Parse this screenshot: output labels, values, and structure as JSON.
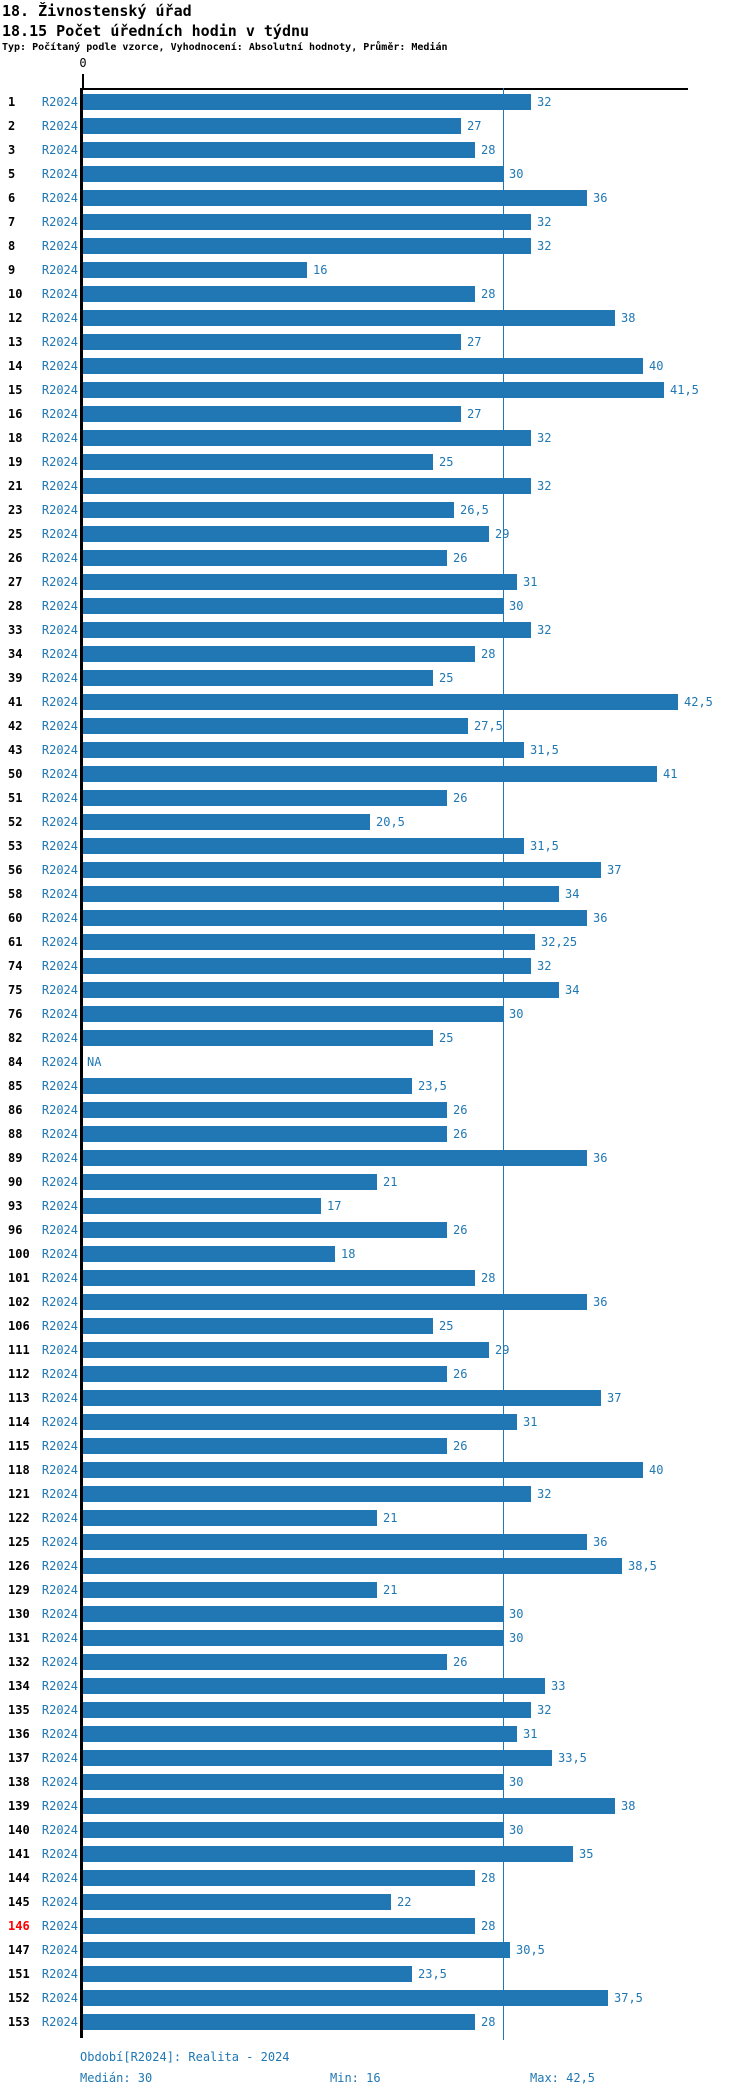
{
  "header": {
    "title": "18. Živnostenský úřad",
    "subtitle": "18.15 Počet úředních hodin v týdnu",
    "meta": "Typ: Počítaný podle vzorce, Vyhodnocení: Absolutní hodnoty, Průměr: Medián"
  },
  "axis": {
    "zero_label": "0"
  },
  "footer": {
    "period": "Období[R2024]: Realita - 2024",
    "median": "Medián: 30",
    "min": "Min: 16",
    "max": "Max: 42,5"
  },
  "colors": {
    "bar": "#2077b4",
    "accent_text": "#1f77b4",
    "median_line": "#1f77b4",
    "axis": "#000000",
    "highlight_row": "#ff0000"
  },
  "chart_data": {
    "type": "bar",
    "orientation": "horizontal",
    "title": "18.15 Počet úředních hodin v týdnu",
    "series_label": "R2024",
    "xlabel": "",
    "ylabel": "",
    "xlim": [
      0,
      43.2
    ],
    "grid": false,
    "median_line_value": 30,
    "stats": {
      "median": 30,
      "min": 16,
      "max": 42.5
    },
    "highlighted_category": "146",
    "rows": [
      {
        "category": "1",
        "value": 32,
        "label": "32"
      },
      {
        "category": "2",
        "value": 27,
        "label": "27"
      },
      {
        "category": "3",
        "value": 28,
        "label": "28"
      },
      {
        "category": "5",
        "value": 30,
        "label": "30"
      },
      {
        "category": "6",
        "value": 36,
        "label": "36"
      },
      {
        "category": "7",
        "value": 32,
        "label": "32"
      },
      {
        "category": "8",
        "value": 32,
        "label": "32"
      },
      {
        "category": "9",
        "value": 16,
        "label": "16"
      },
      {
        "category": "10",
        "value": 28,
        "label": "28"
      },
      {
        "category": "12",
        "value": 38,
        "label": "38"
      },
      {
        "category": "13",
        "value": 27,
        "label": "27"
      },
      {
        "category": "14",
        "value": 40,
        "label": "40"
      },
      {
        "category": "15",
        "value": 41.5,
        "label": "41,5"
      },
      {
        "category": "16",
        "value": 27,
        "label": "27"
      },
      {
        "category": "18",
        "value": 32,
        "label": "32"
      },
      {
        "category": "19",
        "value": 25,
        "label": "25"
      },
      {
        "category": "21",
        "value": 32,
        "label": "32"
      },
      {
        "category": "23",
        "value": 26.5,
        "label": "26,5"
      },
      {
        "category": "25",
        "value": 29,
        "label": "29"
      },
      {
        "category": "26",
        "value": 26,
        "label": "26"
      },
      {
        "category": "27",
        "value": 31,
        "label": "31"
      },
      {
        "category": "28",
        "value": 30,
        "label": "30"
      },
      {
        "category": "33",
        "value": 32,
        "label": "32"
      },
      {
        "category": "34",
        "value": 28,
        "label": "28"
      },
      {
        "category": "39",
        "value": 25,
        "label": "25"
      },
      {
        "category": "41",
        "value": 42.5,
        "label": "42,5"
      },
      {
        "category": "42",
        "value": 27.5,
        "label": "27,5"
      },
      {
        "category": "43",
        "value": 31.5,
        "label": "31,5"
      },
      {
        "category": "50",
        "value": 41,
        "label": "41"
      },
      {
        "category": "51",
        "value": 26,
        "label": "26"
      },
      {
        "category": "52",
        "value": 20.5,
        "label": "20,5"
      },
      {
        "category": "53",
        "value": 31.5,
        "label": "31,5"
      },
      {
        "category": "56",
        "value": 37,
        "label": "37"
      },
      {
        "category": "58",
        "value": 34,
        "label": "34"
      },
      {
        "category": "60",
        "value": 36,
        "label": "36"
      },
      {
        "category": "61",
        "value": 32.25,
        "label": "32,25"
      },
      {
        "category": "74",
        "value": 32,
        "label": "32"
      },
      {
        "category": "75",
        "value": 34,
        "label": "34"
      },
      {
        "category": "76",
        "value": 30,
        "label": "30"
      },
      {
        "category": "82",
        "value": 25,
        "label": "25"
      },
      {
        "category": "84",
        "value": null,
        "label": "NA"
      },
      {
        "category": "85",
        "value": 23.5,
        "label": "23,5"
      },
      {
        "category": "86",
        "value": 26,
        "label": "26"
      },
      {
        "category": "88",
        "value": 26,
        "label": "26"
      },
      {
        "category": "89",
        "value": 36,
        "label": "36"
      },
      {
        "category": "90",
        "value": 21,
        "label": "21"
      },
      {
        "category": "93",
        "value": 17,
        "label": "17"
      },
      {
        "category": "96",
        "value": 26,
        "label": "26"
      },
      {
        "category": "100",
        "value": 18,
        "label": "18"
      },
      {
        "category": "101",
        "value": 28,
        "label": "28"
      },
      {
        "category": "102",
        "value": 36,
        "label": "36"
      },
      {
        "category": "106",
        "value": 25,
        "label": "25"
      },
      {
        "category": "111",
        "value": 29,
        "label": "29"
      },
      {
        "category": "112",
        "value": 26,
        "label": "26"
      },
      {
        "category": "113",
        "value": 37,
        "label": "37"
      },
      {
        "category": "114",
        "value": 31,
        "label": "31"
      },
      {
        "category": "115",
        "value": 26,
        "label": "26"
      },
      {
        "category": "118",
        "value": 40,
        "label": "40"
      },
      {
        "category": "121",
        "value": 32,
        "label": "32"
      },
      {
        "category": "122",
        "value": 21,
        "label": "21"
      },
      {
        "category": "125",
        "value": 36,
        "label": "36"
      },
      {
        "category": "126",
        "value": 38.5,
        "label": "38,5"
      },
      {
        "category": "129",
        "value": 21,
        "label": "21"
      },
      {
        "category": "130",
        "value": 30,
        "label": "30"
      },
      {
        "category": "131",
        "value": 30,
        "label": "30"
      },
      {
        "category": "132",
        "value": 26,
        "label": "26"
      },
      {
        "category": "134",
        "value": 33,
        "label": "33"
      },
      {
        "category": "135",
        "value": 32,
        "label": "32"
      },
      {
        "category": "136",
        "value": 31,
        "label": "31"
      },
      {
        "category": "137",
        "value": 33.5,
        "label": "33,5"
      },
      {
        "category": "138",
        "value": 30,
        "label": "30"
      },
      {
        "category": "139",
        "value": 38,
        "label": "38"
      },
      {
        "category": "140",
        "value": 30,
        "label": "30"
      },
      {
        "category": "141",
        "value": 35,
        "label": "35"
      },
      {
        "category": "144",
        "value": 28,
        "label": "28"
      },
      {
        "category": "145",
        "value": 22,
        "label": "22"
      },
      {
        "category": "146",
        "value": 28,
        "label": "28",
        "highlight": true
      },
      {
        "category": "147",
        "value": 30.5,
        "label": "30,5"
      },
      {
        "category": "151",
        "value": 23.5,
        "label": "23,5"
      },
      {
        "category": "152",
        "value": 37.5,
        "label": "37,5"
      },
      {
        "category": "153",
        "value": 28,
        "label": "28"
      }
    ]
  }
}
